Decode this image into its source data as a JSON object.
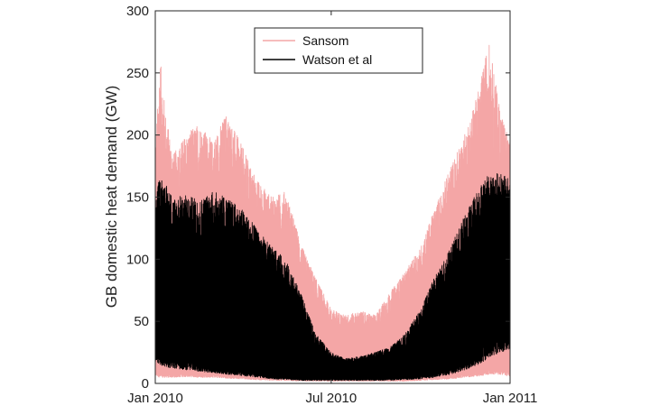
{
  "chart_data": {
    "type": "area",
    "title": "",
    "xlabel": "",
    "ylabel": "GB domestic heat demand (GW)",
    "xlim": [
      "2010-01-01",
      "2011-01-01"
    ],
    "ylim": [
      0,
      300
    ],
    "x_ticks": [
      {
        "date": "2010-01-01",
        "label": "Jan 2010"
      },
      {
        "date": "2010-07-01",
        "label": "Jul 2010"
      },
      {
        "date": "2011-01-01",
        "label": "Jan 2011"
      }
    ],
    "y_ticks": [
      0,
      50,
      100,
      150,
      200,
      250,
      300
    ],
    "grid": false,
    "legend_position": "top-center",
    "series": [
      {
        "name": "Sansom",
        "color": "#f4a6a6",
        "envelope": {
          "dates": [
            "2010-01-01",
            "2010-01-06",
            "2010-01-12",
            "2010-01-20",
            "2010-02-01",
            "2010-02-15",
            "2010-03-01",
            "2010-03-15",
            "2010-04-01",
            "2010-04-15",
            "2010-05-01",
            "2010-05-15",
            "2010-06-01",
            "2010-06-15",
            "2010-07-01",
            "2010-07-15",
            "2010-08-01",
            "2010-08-15",
            "2010-09-01",
            "2010-09-15",
            "2010-10-01",
            "2010-10-15",
            "2010-11-01",
            "2010-11-15",
            "2010-12-01",
            "2010-12-10",
            "2010-12-20",
            "2010-12-31"
          ],
          "max": [
            190,
            262,
            215,
            185,
            200,
            210,
            195,
            218,
            190,
            165,
            150,
            155,
            110,
            85,
            60,
            55,
            58,
            55,
            75,
            90,
            110,
            140,
            175,
            200,
            240,
            276,
            230,
            195
          ],
          "min": [
            10,
            8,
            8,
            8,
            9,
            8,
            8,
            7,
            6,
            5,
            4,
            4,
            3,
            3,
            3,
            3,
            3,
            3,
            3,
            3,
            4,
            5,
            6,
            8,
            10,
            12,
            12,
            10
          ]
        }
      },
      {
        "name": "Watson et al",
        "color": "#000000",
        "envelope": {
          "dates": [
            "2010-01-01",
            "2010-01-06",
            "2010-01-12",
            "2010-01-20",
            "2010-02-01",
            "2010-02-15",
            "2010-03-01",
            "2010-03-15",
            "2010-04-01",
            "2010-04-15",
            "2010-05-01",
            "2010-05-15",
            "2010-06-01",
            "2010-06-15",
            "2010-07-01",
            "2010-07-15",
            "2010-08-01",
            "2010-08-15",
            "2010-09-01",
            "2010-09-15",
            "2010-10-01",
            "2010-10-15",
            "2010-11-01",
            "2010-11-15",
            "2010-12-01",
            "2010-12-10",
            "2010-12-20",
            "2010-12-31"
          ],
          "max": [
            150,
            168,
            160,
            150,
            152,
            148,
            155,
            150,
            140,
            125,
            110,
            100,
            70,
            40,
            25,
            20,
            22,
            25,
            30,
            40,
            60,
            85,
            110,
            135,
            160,
            168,
            170,
            165
          ],
          "min": [
            28,
            25,
            22,
            20,
            18,
            16,
            14,
            12,
            10,
            8,
            6,
            5,
            4,
            4,
            4,
            4,
            4,
            4,
            4,
            5,
            6,
            8,
            12,
            18,
            25,
            35,
            40,
            45
          ]
        }
      }
    ]
  }
}
